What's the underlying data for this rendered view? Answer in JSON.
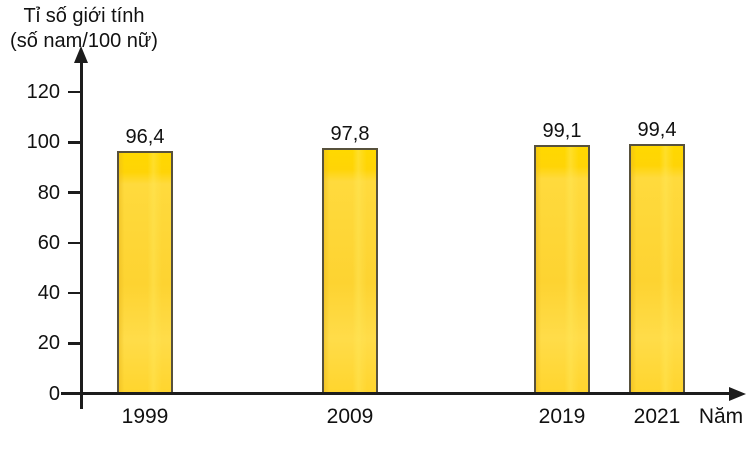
{
  "title": {
    "line1": "Tỉ số giới tính",
    "line2": "(số nam/100 nữ)"
  },
  "x_axis_name": "Năm",
  "chart_data": {
    "type": "bar",
    "title": "Tỉ số giới tính (số nam/100 nữ)",
    "xlabel": "Năm",
    "ylabel": "Tỉ số giới tính (số nam/100 nữ)",
    "categories": [
      "1999",
      "2009",
      "2019",
      "2021"
    ],
    "values": [
      96.4,
      97.8,
      99.1,
      99.4
    ],
    "value_labels": [
      "96,4",
      "97,8",
      "99,1",
      "99,4"
    ],
    "yticks": [
      0,
      20,
      40,
      60,
      80,
      100,
      120
    ],
    "ylim": [
      0,
      130
    ],
    "grid": false,
    "legend_position": "none",
    "bar_color": "#FFD52E",
    "bar_border_color": "#57513C",
    "axis_color": "#1C1C1C"
  }
}
